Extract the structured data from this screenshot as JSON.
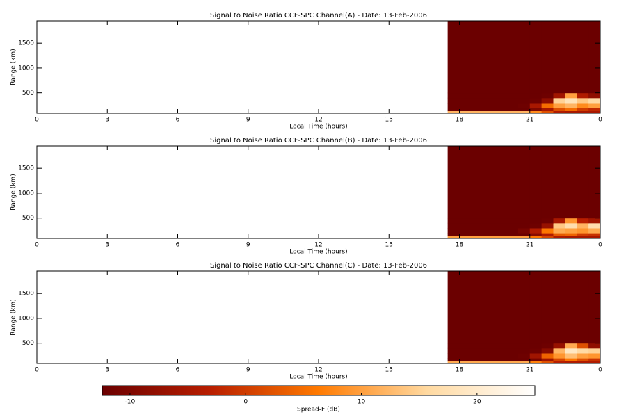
{
  "chart_data": [
    {
      "type": "heatmap",
      "title": "Signal to Noise Ratio CCF-SPC Channel(A) - Date: 13-Feb-2006",
      "xlabel": "Local Time (hours)",
      "ylabel": "Range (km)",
      "xlim": [
        0,
        24
      ],
      "xticks": [
        0,
        3,
        6,
        9,
        12,
        15,
        18,
        21,
        {
          "value": 24,
          "label": "0"
        }
      ],
      "ylim": [
        90,
        1950
      ],
      "yticks": [
        500,
        1000,
        1500
      ],
      "x": [
        17.5,
        18.5,
        19.5,
        20.5,
        21,
        21.5,
        22,
        22.5,
        23,
        23.5,
        24
      ],
      "y": [
        90,
        150,
        200,
        300,
        400,
        500,
        1950
      ],
      "values": [
        [
          12,
          12,
          12,
          12,
          8,
          2,
          -4,
          -5,
          -5,
          -5
        ],
        [
          -13,
          -13,
          -13,
          -13,
          -10,
          -5,
          2,
          5,
          0,
          -2
        ],
        [
          -13,
          -13,
          -13,
          -12,
          -5,
          5,
          10,
          12,
          8,
          10
        ],
        [
          -13,
          -13,
          -13,
          -13,
          -12,
          -8,
          15,
          18,
          14,
          16
        ],
        [
          -13,
          -13,
          -13,
          -13,
          -13,
          -12,
          -6,
          10,
          -4,
          -8
        ],
        [
          -13,
          -13,
          -13,
          -13,
          -13,
          -13,
          -13,
          -13,
          -13,
          -13
        ]
      ]
    },
    {
      "type": "heatmap",
      "title": "Signal to Noise Ratio CCF-SPC Channel(B) - Date: 13-Feb-2006",
      "xlabel": "Local Time (hours)",
      "ylabel": "Range (km)",
      "xlim": [
        0,
        24
      ],
      "xticks": [
        0,
        3,
        6,
        9,
        12,
        15,
        18,
        21,
        {
          "value": 24,
          "label": "0"
        }
      ],
      "ylim": [
        90,
        1950
      ],
      "yticks": [
        500,
        1000,
        1500
      ],
      "x": [
        17.5,
        18.5,
        19.5,
        20.5,
        21,
        21.5,
        22,
        22.5,
        23,
        23.5,
        24
      ],
      "y": [
        90,
        150,
        200,
        300,
        400,
        500,
        1950
      ],
      "values": [
        [
          10,
          10,
          10,
          10,
          6,
          1,
          -4,
          -5,
          -5,
          -5
        ],
        [
          -13,
          -13,
          -13,
          -13,
          -9,
          -4,
          3,
          4,
          0,
          -1
        ],
        [
          -13,
          -13,
          -13,
          -11,
          -4,
          6,
          11,
          10,
          9,
          11
        ],
        [
          -13,
          -13,
          -13,
          -13,
          -12,
          -7,
          14,
          17,
          12,
          17
        ],
        [
          -13,
          -13,
          -13,
          -13,
          -13,
          -12,
          -5,
          9,
          -3,
          -6
        ],
        [
          -13,
          -13,
          -13,
          -13,
          -13,
          -13,
          -13,
          -13,
          -13,
          -13
        ]
      ]
    },
    {
      "type": "heatmap",
      "title": "Signal to Noise Ratio CCF-SPC Channel(C) - Date: 13-Feb-2006",
      "xlabel": "Local Time (hours)",
      "ylabel": "Range (km)",
      "xlim": [
        0,
        24
      ],
      "xticks": [
        0,
        3,
        6,
        9,
        12,
        15,
        18,
        21,
        {
          "value": 24,
          "label": "0"
        }
      ],
      "ylim": [
        90,
        1950
      ],
      "yticks": [
        500,
        1000,
        1500
      ],
      "x": [
        17.5,
        18.5,
        19.5,
        20.5,
        21,
        21.5,
        22,
        22.5,
        23,
        23.5,
        24
      ],
      "y": [
        90,
        150,
        200,
        300,
        400,
        500,
        1950
      ],
      "values": [
        [
          11,
          11,
          11,
          11,
          7,
          2,
          -3,
          -4,
          -4,
          -4
        ],
        [
          -13,
          -13,
          -13,
          -13,
          -11,
          -6,
          1,
          6,
          2,
          -1
        ],
        [
          -13,
          -13,
          -13,
          -12,
          -6,
          4,
          9,
          13,
          10,
          9
        ],
        [
          -13,
          -13,
          -13,
          -13,
          -12,
          -9,
          12,
          19,
          16,
          15
        ],
        [
          -13,
          -13,
          -13,
          -13,
          -13,
          -12,
          -7,
          11,
          2,
          -8
        ],
        [
          -13,
          -13,
          -13,
          -13,
          -13,
          -13,
          -13,
          -13,
          -13,
          -13
        ]
      ]
    },
    {
      "type": "colorbar",
      "xlabel": "Spread-F (dB)",
      "xlim": [
        -12.4,
        25
      ],
      "xticks": [
        -10,
        0,
        10,
        20
      ],
      "colorscale": [
        "#6b0000",
        "#b81e00",
        "#ff7a00",
        "#ffd9a0",
        "#ffffff"
      ]
    }
  ]
}
